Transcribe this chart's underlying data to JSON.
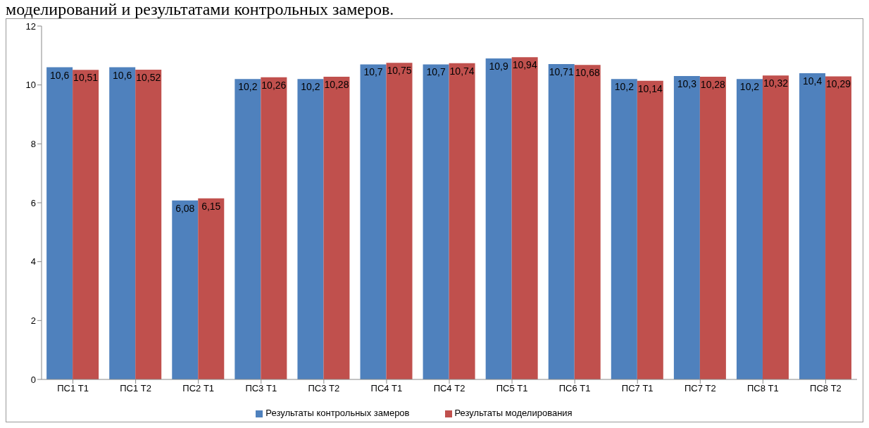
{
  "chart_data": {
    "type": "bar",
    "annotations": [
      "моделирований и результатами контрольных замеров."
    ],
    "categories": [
      "ПС1 Т1",
      "ПС1 Т2",
      "ПС2 Т1",
      "ПС3 Т1",
      "ПС3 Т2",
      "ПС4 Т1",
      "ПС4 Т2",
      "ПС5 Т1",
      "ПС6 Т1",
      "ПС7 Т1",
      "ПС7 Т2",
      "ПС8 Т1",
      "ПС8 Т2"
    ],
    "series": [
      {
        "name": "Результаты контрольных замеров",
        "color": "#4f81bd",
        "values": [
          10.6,
          10.6,
          6.08,
          10.2,
          10.2,
          10.7,
          10.7,
          10.9,
          10.71,
          10.2,
          10.3,
          10.2,
          10.4
        ],
        "value_labels": [
          "10,6",
          "10,6",
          "6,08",
          "10,2",
          "10,2",
          "10,7",
          "10,7",
          "10,9",
          "10,71",
          "10,2",
          "10,3",
          "10,2",
          "10,4"
        ]
      },
      {
        "name": "Результаты моделирования",
        "color": "#c0504d",
        "values": [
          10.51,
          10.52,
          6.15,
          10.26,
          10.28,
          10.75,
          10.74,
          10.94,
          10.68,
          10.14,
          10.28,
          10.32,
          10.29
        ],
        "value_labels": [
          "10,51",
          "10,52",
          "6,15",
          "10,26",
          "10,28",
          "10,75",
          "10,74",
          "10,94",
          "10,68",
          "10,14",
          "10,28",
          "10,32",
          "10,29"
        ]
      }
    ],
    "ylim": [
      0,
      12
    ],
    "yticks": [
      0,
      2,
      4,
      6,
      8,
      10,
      12
    ],
    "grid": false,
    "legend": "bottom"
  }
}
